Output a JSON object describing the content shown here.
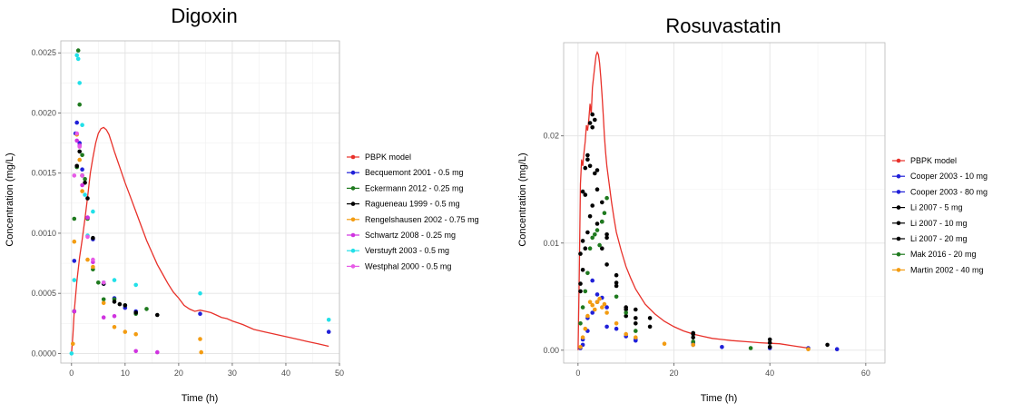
{
  "chart_data": [
    {
      "type": "scatter",
      "title": "Digoxin",
      "xlabel": "Time (h)",
      "ylabel": "Concentration (mg/L)",
      "xlim": [
        -2,
        50
      ],
      "ylim": [
        -8e-05,
        0.0026
      ],
      "xticks": [
        0,
        10,
        20,
        30,
        40,
        50
      ],
      "yticks": [
        0.0,
        0.0005,
        0.001,
        0.0015,
        0.002,
        0.0025
      ],
      "ytick_labels": [
        "0.0000",
        "0.0005",
        "0.0010",
        "0.0015",
        "0.0020",
        "0.0025"
      ],
      "grid": true,
      "legend_position": "right",
      "series": [
        {
          "name": "PBPK model",
          "color": "#e8312a",
          "kind": "line",
          "x": [
            0,
            0.25,
            0.5,
            1,
            1.5,
            2,
            2.5,
            3,
            3.5,
            4,
            4.5,
            5,
            5.5,
            6,
            6.5,
            7,
            7.5,
            8,
            9,
            10,
            11,
            12,
            13,
            14,
            15,
            16,
            17,
            18,
            19,
            20,
            21,
            22,
            23,
            24,
            25,
            26,
            27,
            28,
            29,
            30,
            32,
            34,
            36,
            38,
            40,
            42,
            44,
            46,
            48
          ],
          "y": [
            0.0,
            0.00015,
            0.00035,
            0.0006,
            0.0008,
            0.00095,
            0.00112,
            0.0013,
            0.0015,
            0.00163,
            0.00175,
            0.00183,
            0.00187,
            0.00188,
            0.00186,
            0.00182,
            0.00175,
            0.00168,
            0.00155,
            0.00142,
            0.0013,
            0.00118,
            0.00106,
            0.00094,
            0.00084,
            0.00074,
            0.00066,
            0.00058,
            0.00051,
            0.00046,
            0.0004,
            0.00037,
            0.00035,
            0.00036,
            0.00035,
            0.00034,
            0.00032,
            0.0003,
            0.00029,
            0.00027,
            0.00024,
            0.0002,
            0.00018,
            0.00016,
            0.00014,
            0.00012,
            0.0001,
            8e-05,
            6e-05
          ]
        },
        {
          "name": "Becquemont 2001 - 0.5 mg",
          "color": "#2020d8",
          "kind": "points",
          "x": [
            0.5,
            0.75,
            1,
            1.5,
            2,
            3,
            4,
            6,
            8,
            10,
            12,
            24,
            48
          ],
          "y": [
            0.00077,
            0.00183,
            0.00192,
            0.00175,
            0.00153,
            0.00113,
            0.00095,
            0.00058,
            0.00046,
            0.00038,
            0.00035,
            0.00033,
            0.00018
          ]
        },
        {
          "name": "Eckermann 2012 - 0.25 mg",
          "color": "#1f7a1f",
          "kind": "points",
          "x": [
            0.5,
            1,
            1.25,
            1.5,
            2,
            2.5,
            3,
            4,
            5,
            6,
            8,
            10,
            12,
            14
          ],
          "y": [
            0.00112,
            0.00155,
            0.00252,
            0.00207,
            0.00165,
            0.00145,
            0.00112,
            0.0007,
            0.00059,
            0.00045,
            0.00045,
            0.0004,
            0.00033,
            0.00037
          ]
        },
        {
          "name": "Ragueneau 1999 - 0.5 mg",
          "color": "#000000",
          "kind": "points",
          "x": [
            0.5,
            1,
            1.5,
            2,
            2.5,
            3,
            4,
            6,
            8,
            9,
            10,
            12,
            16
          ],
          "y": [
            0.00035,
            0.00156,
            0.00168,
            0.00148,
            0.00142,
            0.00129,
            0.00096,
            0.00058,
            0.00043,
            0.00041,
            0.0004,
            0.00034,
            0.00032
          ]
        },
        {
          "name": "Rengelshausen 2002 - 0.75 mg",
          "color": "#f39c12",
          "kind": "points",
          "x": [
            0.25,
            0.5,
            1,
            1.5,
            2,
            3,
            4,
            6,
            8,
            10,
            12,
            24,
            24.2
          ],
          "y": [
            8e-05,
            0.00093,
            0.00182,
            0.00161,
            0.00135,
            0.00078,
            0.00072,
            0.00042,
            0.00022,
            0.00018,
            0.00016,
            0.00012,
            1e-05
          ]
        },
        {
          "name": "Schwartz 2008 - 0.25 mg",
          "color": "#d033e0",
          "kind": "points",
          "x": [
            0.5,
            1,
            1.5,
            2,
            3,
            4,
            6,
            8,
            12,
            16
          ],
          "y": [
            0.00035,
            0.00177,
            0.00173,
            0.0014,
            0.00113,
            0.00076,
            0.0003,
            0.00031,
            2e-05,
            1e-05
          ]
        },
        {
          "name": "Verstuyft 2003 - 0.5 mg",
          "color": "#22e0e8",
          "kind": "points",
          "x": [
            0,
            0.5,
            1,
            1.25,
            1.5,
            2,
            2.5,
            3,
            4,
            6,
            8,
            12,
            24,
            48
          ],
          "y": [
            0.0,
            0.00061,
            0.00248,
            0.00245,
            0.00225,
            0.0019,
            0.00132,
            0.00098,
            0.00118,
            0.00059,
            0.00061,
            0.00057,
            0.0005,
            0.00028
          ]
        },
        {
          "name": "Westphal 2000 - 0.5 mg",
          "color": "#e75be7",
          "kind": "points",
          "x": [
            0.5,
            1,
            1.5,
            2,
            3,
            4,
            6
          ],
          "y": [
            0.00148,
            0.00183,
            0.00172,
            0.00148,
            0.00097,
            0.00078,
            0.00059
          ]
        }
      ]
    },
    {
      "type": "scatter",
      "title": "Rosuvastatin",
      "xlabel": "Time (h)",
      "ylabel": "Concentration (mg/L)",
      "xlim": [
        -3,
        64
      ],
      "ylim": [
        -0.0012,
        0.0287
      ],
      "xticks": [
        0,
        20,
        40,
        60
      ],
      "yticks": [
        0.0,
        0.01,
        0.02
      ],
      "ytick_labels": [
        "0.00",
        "0.01",
        "0.02"
      ],
      "grid": true,
      "legend_position": "right",
      "series": [
        {
          "name": "PBPK model",
          "color": "#e8312a",
          "kind": "line",
          "x": [
            0,
            0.25,
            0.5,
            0.75,
            1,
            1.25,
            1.5,
            1.75,
            2,
            2.25,
            2.5,
            2.75,
            3,
            3.25,
            3.5,
            3.75,
            4,
            4.25,
            4.5,
            4.75,
            5,
            5.25,
            5.5,
            5.75,
            6,
            6.5,
            7,
            7.5,
            8,
            9,
            10,
            11,
            12,
            14,
            16,
            18,
            20,
            22,
            24,
            26,
            28,
            30,
            32,
            35,
            38,
            40,
            42,
            45,
            48
          ],
          "y": [
            0.0,
            0.007,
            0.0155,
            0.0178,
            0.0172,
            0.0185,
            0.0195,
            0.021,
            0.0205,
            0.0215,
            0.023,
            0.022,
            0.0245,
            0.0255,
            0.0265,
            0.0275,
            0.0278,
            0.0276,
            0.0268,
            0.0255,
            0.0238,
            0.022,
            0.02,
            0.0185,
            0.0172,
            0.0155,
            0.0138,
            0.0123,
            0.011,
            0.0093,
            0.0078,
            0.0067,
            0.0057,
            0.0043,
            0.0034,
            0.0027,
            0.0022,
            0.0018,
            0.0015,
            0.0013,
            0.0011,
            0.001,
            0.0009,
            0.0008,
            0.0007,
            0.00065,
            0.0006,
            0.0004,
            0.0002
          ]
        },
        {
          "name": "Cooper 2003 - 10 mg",
          "color": "#2020d8",
          "kind": "points",
          "x": [
            0.5,
            1,
            2,
            3,
            4,
            5,
            6,
            8,
            10,
            12,
            24,
            48
          ],
          "y": [
            0.0002,
            0.001,
            0.003,
            0.0065,
            0.0052,
            0.0049,
            0.004,
            0.002,
            0.0013,
            0.001,
            0.0005,
            0.0002
          ]
        },
        {
          "name": "Cooper 2003 - 80 mg",
          "color": "#2020d8",
          "kind": "points",
          "x": [
            1,
            2,
            3,
            4,
            6,
            12,
            24,
            30,
            40,
            54
          ],
          "y": [
            0.0005,
            0.0018,
            0.0035,
            0.0045,
            0.0022,
            0.0009,
            0.0007,
            0.0003,
            0.0002,
            0.0001
          ]
        },
        {
          "name": "Li 2007 - 5 mg",
          "color": "#000000",
          "kind": "points",
          "x": [
            0.5,
            1,
            1.5,
            2,
            2.5,
            3,
            4,
            5,
            6,
            8,
            10,
            12,
            15,
            24,
            40
          ],
          "y": [
            0.0055,
            0.0075,
            0.0095,
            0.011,
            0.0125,
            0.0135,
            0.0118,
            0.0095,
            0.008,
            0.006,
            0.004,
            0.003,
            0.0022,
            0.0012,
            0.0003
          ]
        },
        {
          "name": "Li 2007 - 10 mg",
          "color": "#000000",
          "kind": "points",
          "x": [
            0.5,
            1,
            1.5,
            2,
            2.5,
            3,
            3.5,
            4,
            5,
            6,
            8,
            10,
            12,
            24,
            40
          ],
          "y": [
            0.0062,
            0.0102,
            0.0145,
            0.0178,
            0.0172,
            0.0208,
            0.0165,
            0.015,
            0.012,
            0.0105,
            0.007,
            0.0038,
            0.0025,
            0.0015,
            0.0007
          ]
        },
        {
          "name": "Li 2007 - 20 mg",
          "color": "#000000",
          "kind": "points",
          "x": [
            0.5,
            1,
            1.5,
            2,
            2.5,
            3,
            3.5,
            4,
            5,
            6,
            8,
            10,
            12,
            15,
            24,
            40,
            52
          ],
          "y": [
            0.009,
            0.0148,
            0.017,
            0.0182,
            0.0212,
            0.022,
            0.0215,
            0.0168,
            0.0138,
            0.0108,
            0.0063,
            0.0032,
            0.0038,
            0.003,
            0.0016,
            0.001,
            0.0005
          ]
        },
        {
          "name": "Mak 2016 - 20 mg",
          "color": "#1f7a1f",
          "kind": "points",
          "x": [
            0.5,
            1,
            1.5,
            2,
            2.5,
            3,
            3.5,
            4,
            4.5,
            5,
            5.5,
            6,
            8,
            10,
            12,
            24,
            36
          ],
          "y": [
            0.0025,
            0.004,
            0.0055,
            0.0072,
            0.0095,
            0.0105,
            0.0108,
            0.0112,
            0.0098,
            0.012,
            0.0128,
            0.0142,
            0.005,
            0.0035,
            0.0018,
            0.0008,
            0.0002
          ]
        },
        {
          "name": "Martin 2002 - 40 mg",
          "color": "#f39c12",
          "kind": "points",
          "x": [
            0.5,
            1,
            1.5,
            2,
            2.5,
            3,
            3.5,
            4,
            4.5,
            5,
            5.5,
            6,
            8,
            10,
            12,
            18,
            24,
            48
          ],
          "y": [
            0.0003,
            0.0012,
            0.002,
            0.0032,
            0.0045,
            0.0042,
            0.0038,
            0.0045,
            0.0048,
            0.004,
            0.0043,
            0.0035,
            0.0025,
            0.0015,
            0.0012,
            0.0006,
            0.0005,
            0.0001
          ]
        }
      ]
    }
  ]
}
